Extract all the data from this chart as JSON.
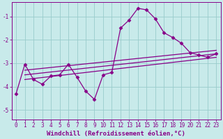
{
  "xlabel": "Windchill (Refroidissement éolien,°C)",
  "bg_color": "#c8eaea",
  "line_color": "#880088",
  "grid_color": "#99cccc",
  "xmin": -0.5,
  "xmax": 23.5,
  "ymin": -5.4,
  "ymax": -0.4,
  "yticks": [
    -5,
    -4,
    -3,
    -2,
    -1
  ],
  "xticks": [
    0,
    1,
    2,
    3,
    4,
    5,
    6,
    7,
    8,
    9,
    10,
    11,
    12,
    13,
    14,
    15,
    16,
    17,
    18,
    19,
    20,
    21,
    22,
    23
  ],
  "data_x": [
    0,
    1,
    2,
    3,
    4,
    5,
    6,
    7,
    8,
    9,
    10,
    11,
    12,
    13,
    14,
    15,
    16,
    17,
    18,
    19,
    20,
    21,
    22,
    23
  ],
  "data_y": [
    -4.3,
    -3.05,
    -3.7,
    -3.9,
    -3.55,
    -3.5,
    -3.05,
    -3.6,
    -4.2,
    -4.55,
    -3.5,
    -3.4,
    -1.5,
    -1.15,
    -0.65,
    -0.72,
    -1.1,
    -1.7,
    -1.9,
    -2.15,
    -2.55,
    -2.65,
    -2.75,
    -2.6
  ],
  "reg_lines": [
    {
      "x0": 1,
      "x1": 23,
      "y0": -3.3,
      "y1": -2.45
    },
    {
      "x0": 1,
      "x1": 23,
      "y0": -3.5,
      "y1": -2.6
    },
    {
      "x0": 1,
      "x1": 23,
      "y0": -3.7,
      "y1": -2.75
    }
  ],
  "marker": "D",
  "markersize": 2.5,
  "linewidth": 0.9,
  "tick_fontsize": 5.5,
  "label_fontsize": 6.5
}
